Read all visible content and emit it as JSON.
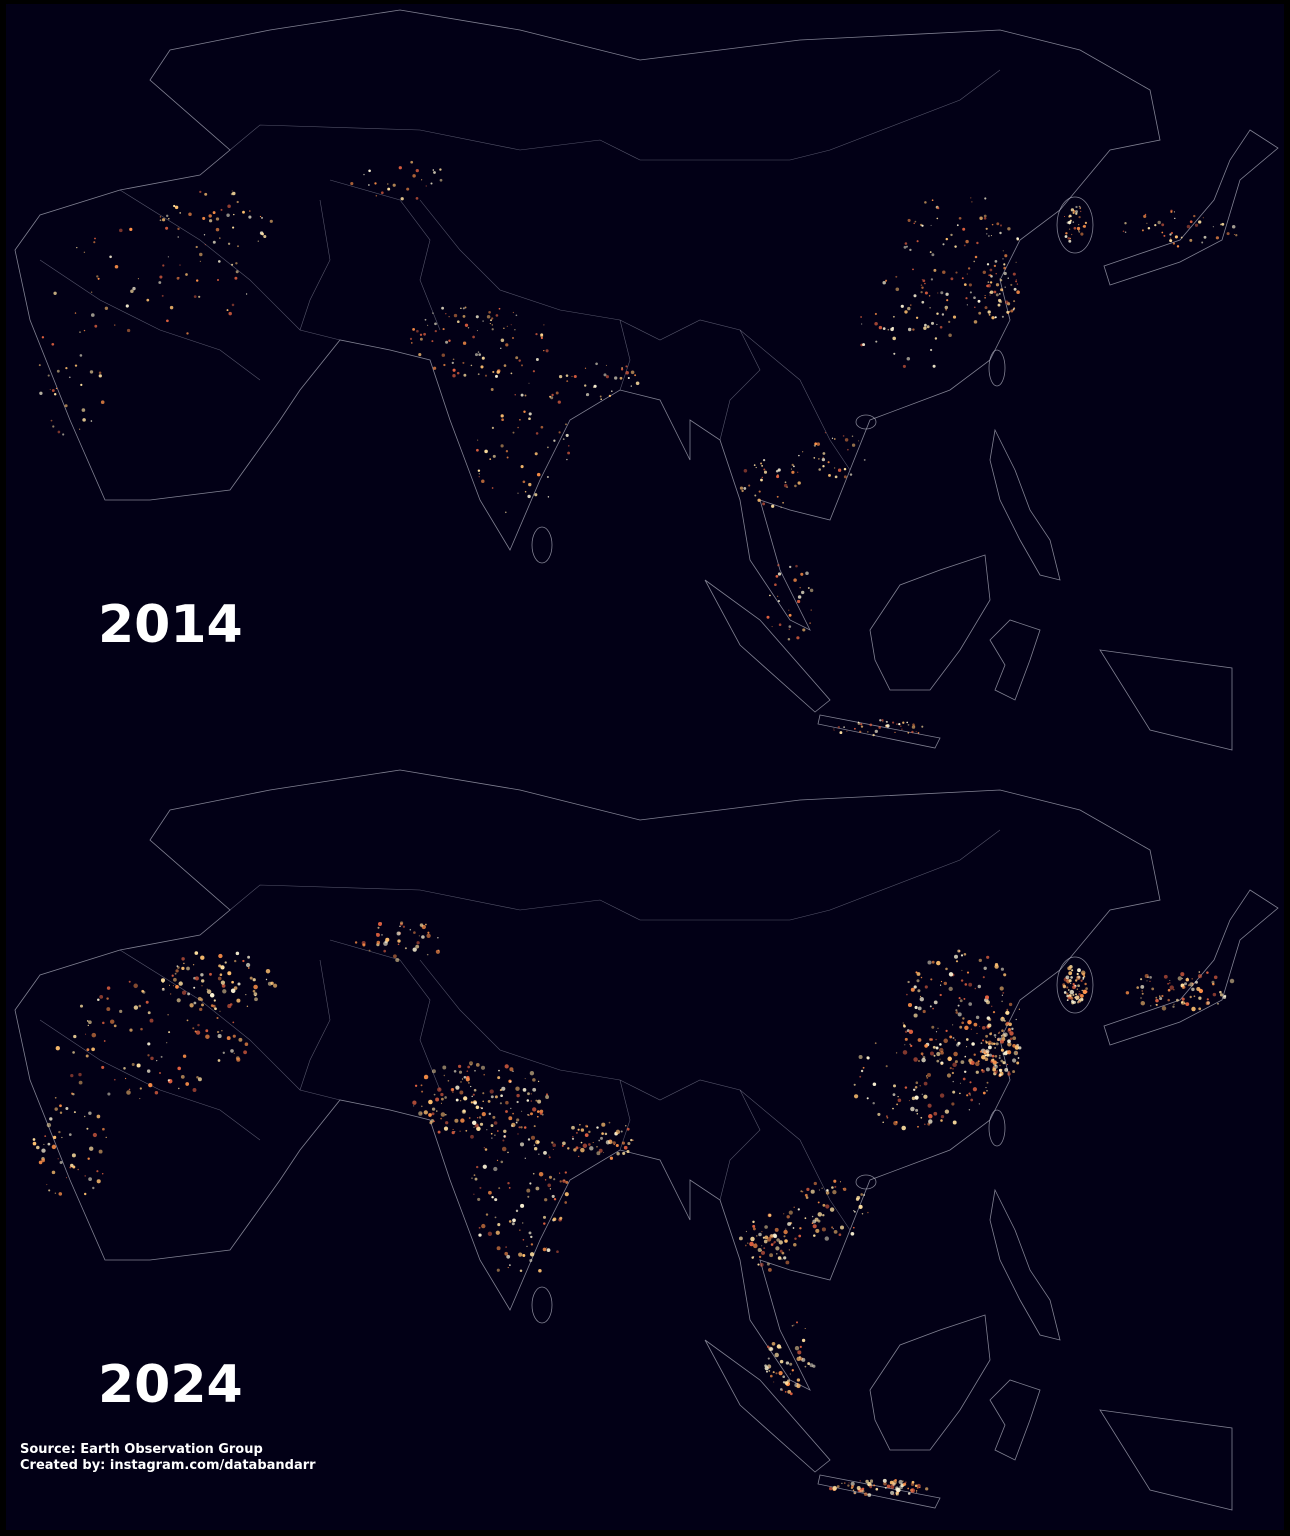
{
  "panels": [
    {
      "year": "2014"
    },
    {
      "year": "2024"
    }
  ],
  "footer": {
    "source": "Source: Earth Observation Group",
    "credit": "Created by: instagram.com/databandarr"
  }
}
